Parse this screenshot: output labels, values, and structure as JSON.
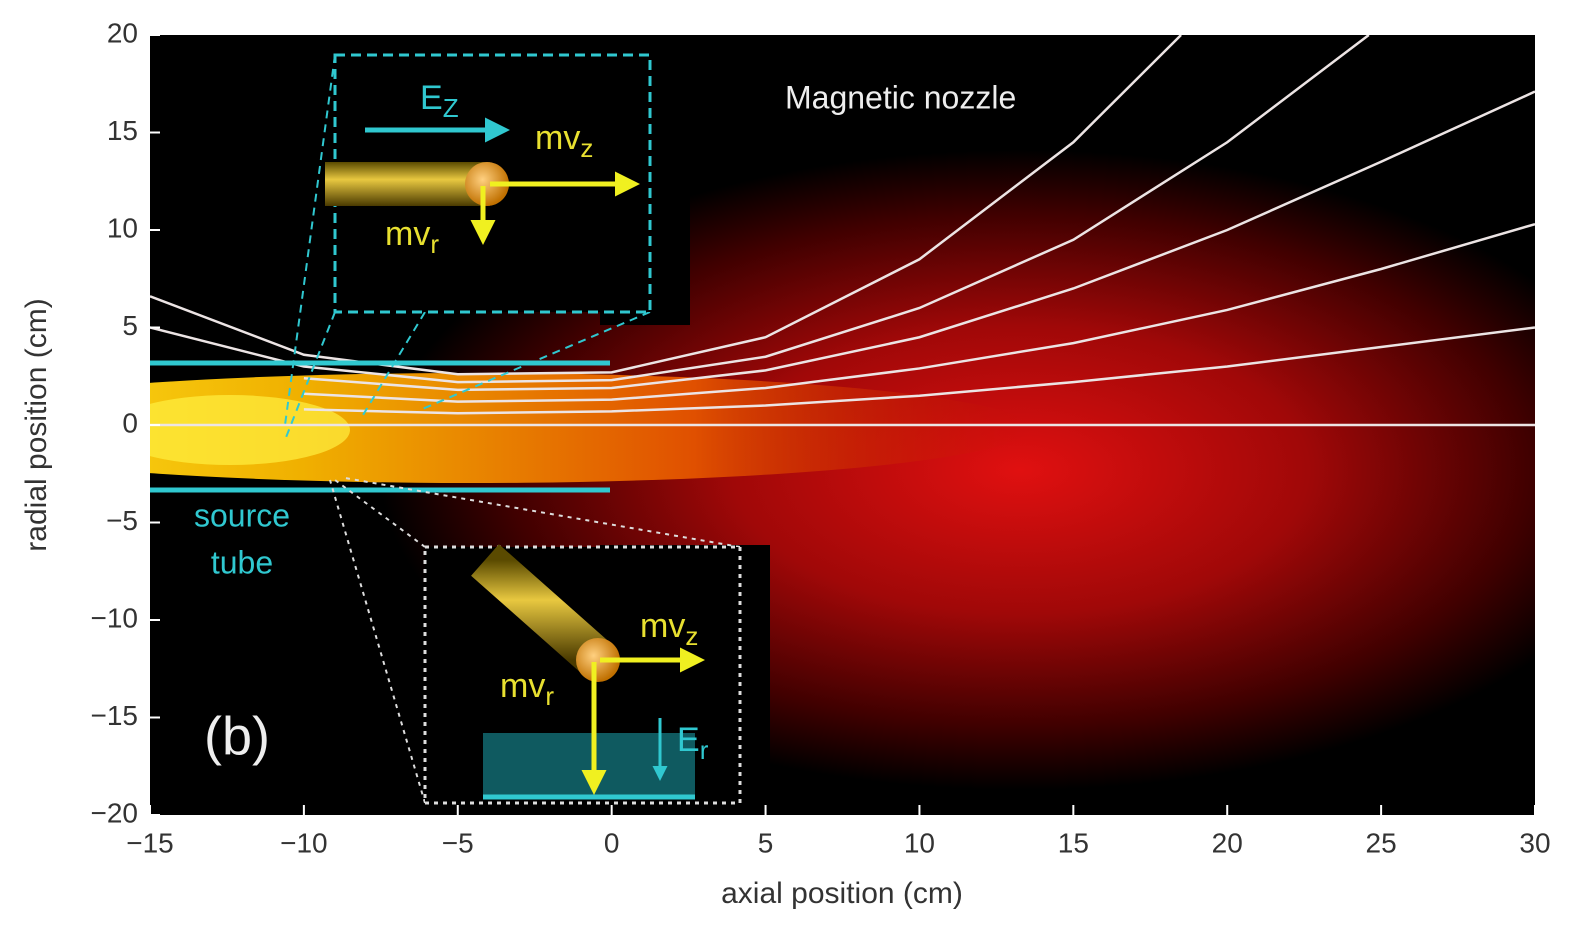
{
  "chart_data": {
    "type": "contour",
    "xlabel": "axial position (cm)",
    "ylabel": "radial position (cm)",
    "xlim": [
      -15,
      30
    ],
    "ylim": [
      -20,
      20
    ],
    "xticks": [
      {
        "value": -15,
        "label": "−15"
      },
      {
        "value": -10,
        "label": "−10"
      },
      {
        "value": -5,
        "label": "−5"
      },
      0,
      5,
      10,
      15,
      20,
      25,
      30
    ],
    "yticks": [
      {
        "value": -20,
        "label": "−20"
      },
      {
        "value": -15,
        "label": "−15"
      },
      {
        "value": -10,
        "label": "−10"
      },
      {
        "value": -5,
        "label": "−5"
      },
      0,
      5,
      10,
      15,
      20
    ],
    "line_color": "#ece4e4",
    "field_lines": [
      {
        "x": [
          -15,
          -10,
          -5,
          0,
          5,
          10,
          15,
          18.5
        ],
        "y": [
          6.6,
          3.6,
          2.6,
          2.7,
          4.5,
          8.5,
          14.5,
          20
        ]
      },
      {
        "x": [
          -15,
          -10,
          -5,
          0,
          5,
          10,
          15,
          20,
          24.6
        ],
        "y": [
          5.0,
          3.0,
          2.2,
          2.3,
          3.5,
          6,
          9.5,
          14.5,
          20
        ]
      },
      {
        "x": [
          -10,
          -5,
          0,
          5,
          10,
          15,
          20,
          25,
          30
        ],
        "y": [
          2.4,
          1.8,
          1.9,
          2.8,
          4.5,
          7,
          10,
          13.5,
          17.1
        ]
      },
      {
        "x": [
          -10,
          -5,
          0,
          5,
          10,
          15,
          20,
          25,
          30
        ],
        "y": [
          1.6,
          1.2,
          1.3,
          1.9,
          2.9,
          4.2,
          5.9,
          8,
          10.3
        ]
      },
      {
        "x": [
          -10,
          -5,
          0,
          5,
          10,
          15,
          20,
          25,
          30
        ],
        "y": [
          0.8,
          0.6,
          0.7,
          1.0,
          1.5,
          2.2,
          3,
          4,
          5
        ]
      },
      {
        "x": [
          -15,
          30
        ],
        "y": [
          0,
          0
        ]
      }
    ],
    "annotations": {
      "nozzle": "Magnetic nozzle",
      "source": "source",
      "tube": "tube",
      "panel": "(b)"
    },
    "insets": [
      {
        "labels": [
          {
            "main": "E",
            "sub": "Z"
          },
          {
            "main": "mv",
            "sub": "z"
          },
          {
            "main": "mv",
            "sub": "r"
          }
        ]
      },
      {
        "labels": [
          {
            "main": "mv",
            "sub": "z"
          },
          {
            "main": "mv",
            "sub": "r"
          },
          {
            "main": "E",
            "sub": "r"
          }
        ]
      }
    ]
  }
}
